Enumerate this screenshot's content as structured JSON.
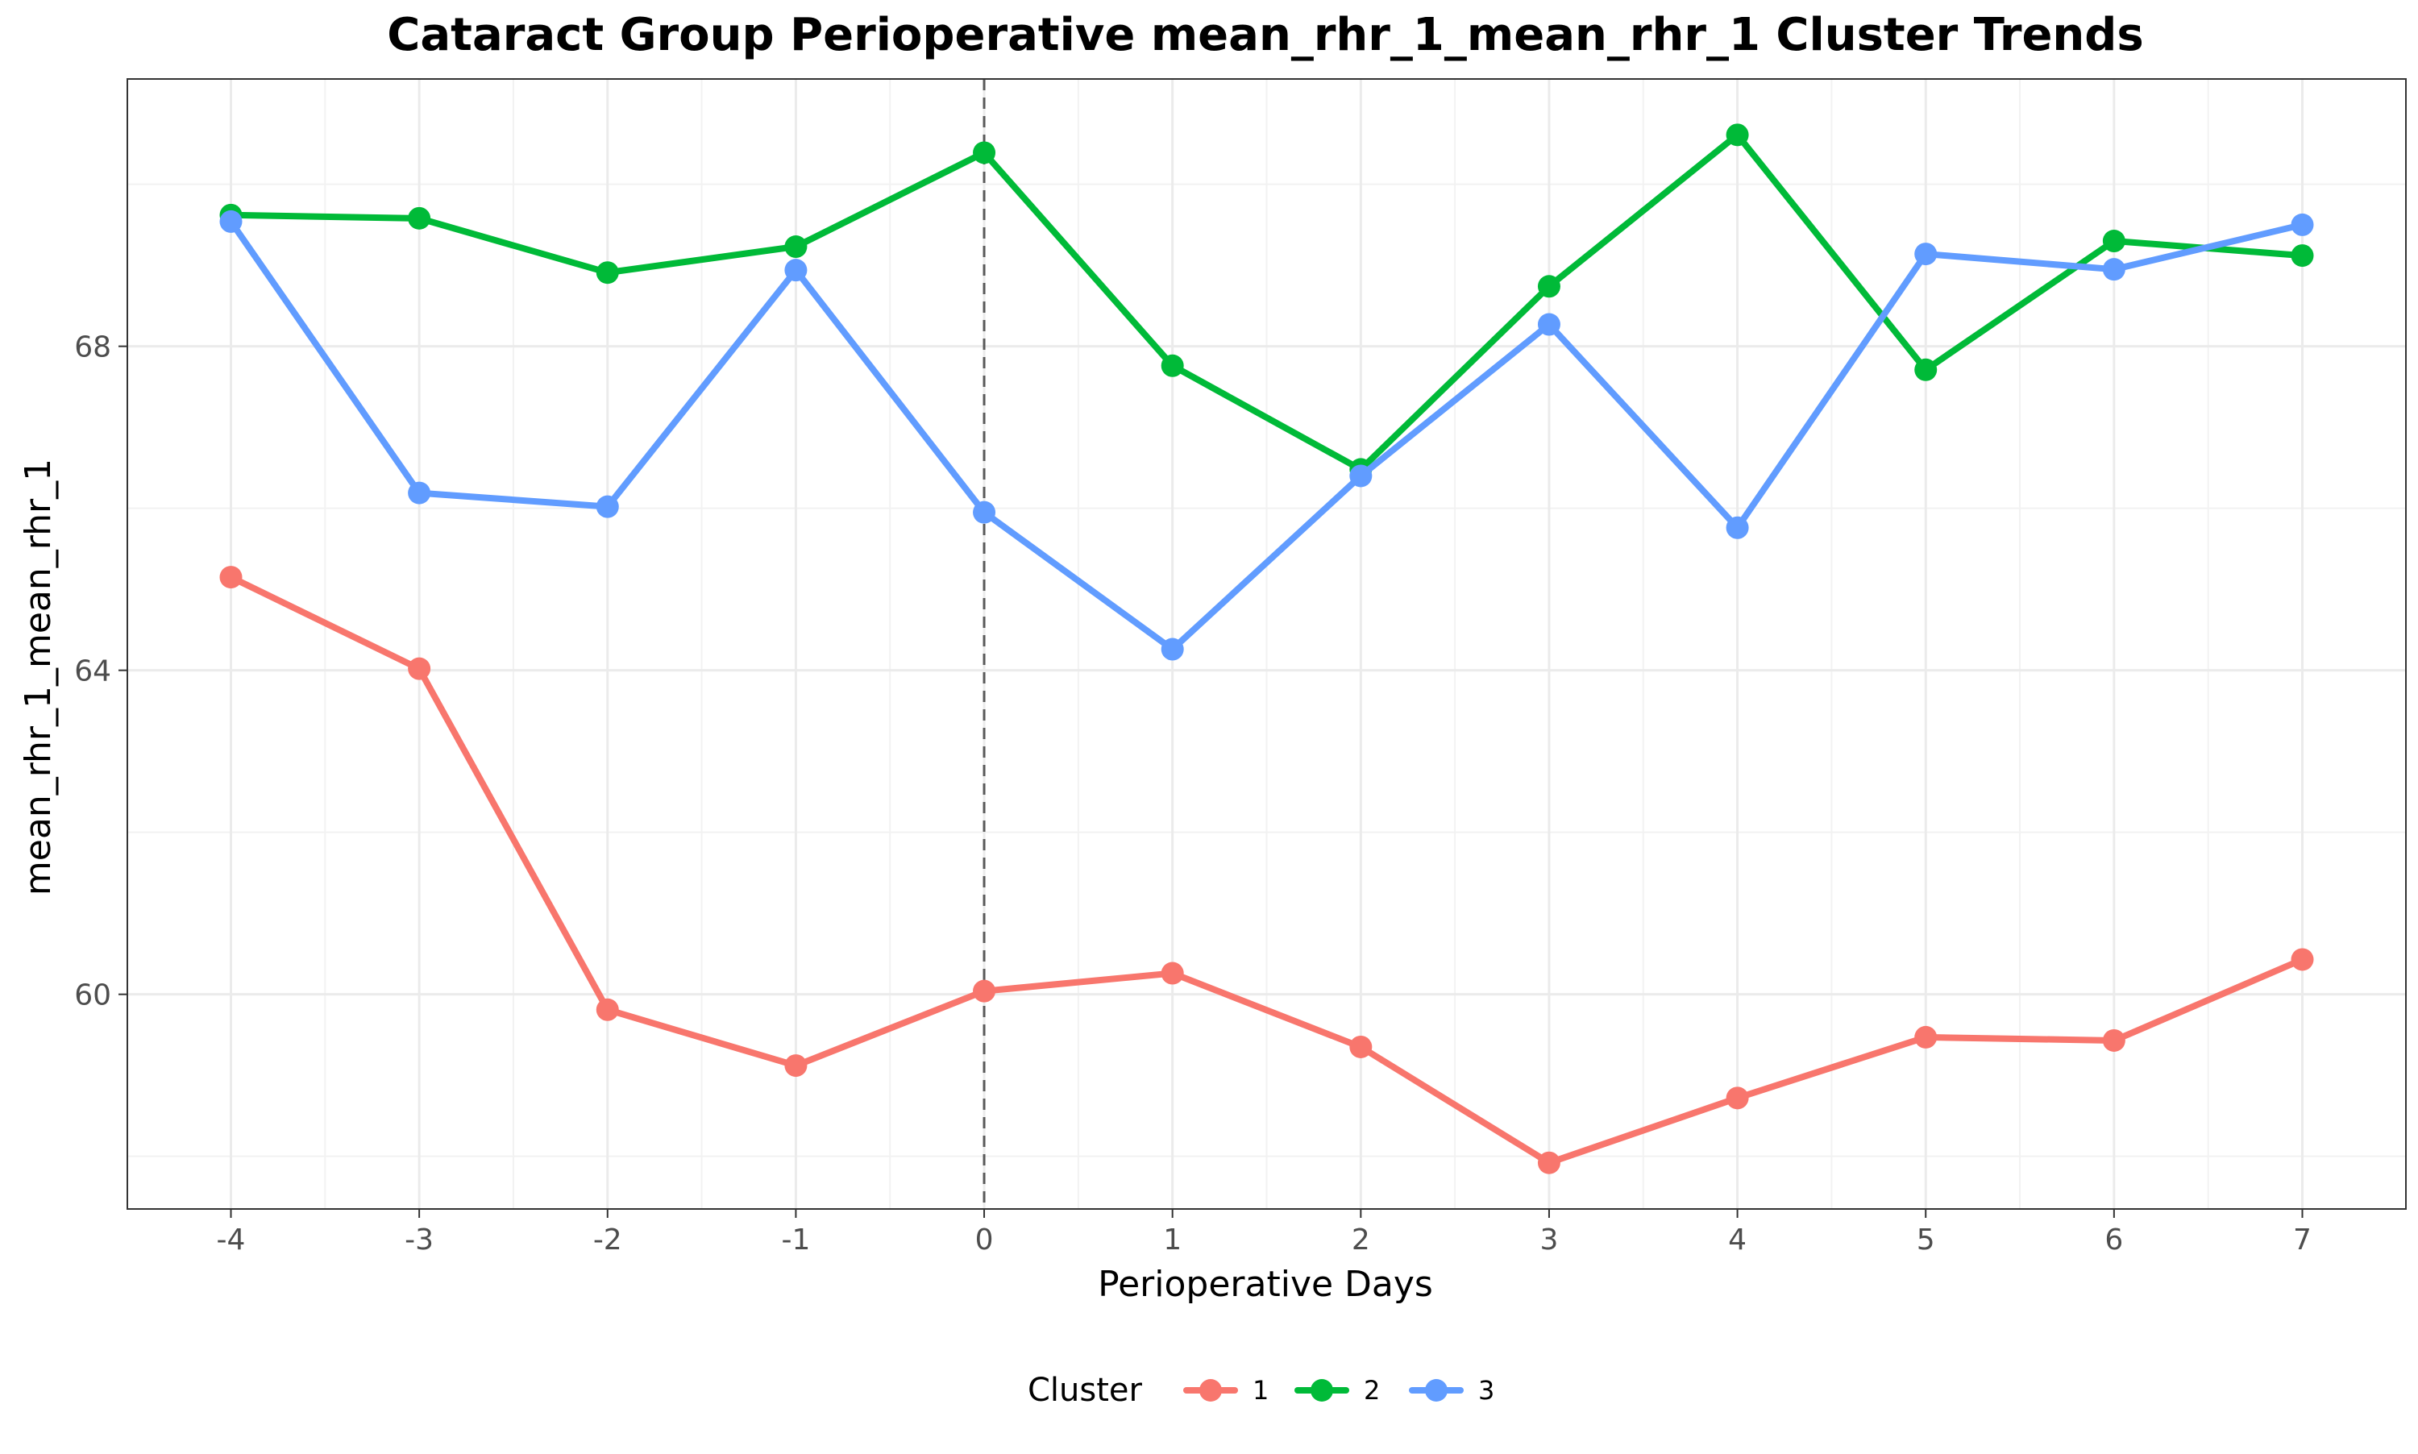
{
  "chart_data": {
    "type": "line",
    "title": "Cataract Group Perioperative mean_rhr_1_mean_rhr_1 Cluster Trends",
    "xlabel": "Perioperative Days",
    "ylabel": "mean_rhr_1_mean_rhr_1",
    "x": [
      -4,
      -3,
      -2,
      -1,
      0,
      1,
      2,
      3,
      4,
      5,
      6,
      7
    ],
    "x_tick_labels": [
      "-4",
      "-3",
      "-2",
      "-1",
      "0",
      "1",
      "2",
      "3",
      "4",
      "5",
      "6",
      "7"
    ],
    "y_ticks": [
      60,
      64,
      68
    ],
    "y_tick_labels": [
      "60",
      "64",
      "68"
    ],
    "xlim": [
      -4.55,
      7.55
    ],
    "ylim": [
      57.35,
      71.3
    ],
    "grid": true,
    "vline": {
      "x": 0,
      "style": "dashed",
      "color": "#595959"
    },
    "legend": {
      "title": "Cluster",
      "position": "bottom"
    },
    "series": [
      {
        "name": "1",
        "color": "#F8766D",
        "values": [
          65.15,
          64.02,
          59.81,
          59.12,
          60.04,
          60.26,
          59.35,
          57.92,
          58.72,
          59.47,
          59.43,
          60.43
        ]
      },
      {
        "name": "2",
        "color": "#00BA38",
        "values": [
          69.62,
          69.58,
          68.91,
          69.23,
          70.39,
          67.76,
          66.48,
          68.74,
          70.61,
          67.71,
          69.3,
          69.12
        ]
      },
      {
        "name": "3",
        "color": "#619CFF",
        "values": [
          69.54,
          66.19,
          66.02,
          68.94,
          65.95,
          64.26,
          66.4,
          68.27,
          65.76,
          69.14,
          68.95,
          69.5
        ]
      }
    ]
  }
}
